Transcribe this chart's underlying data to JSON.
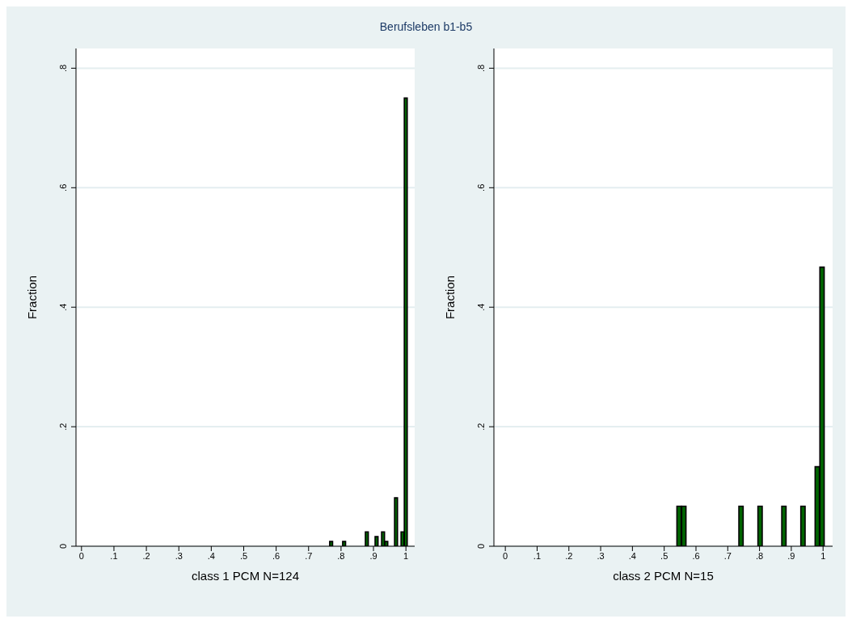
{
  "chart_data": [
    {
      "type": "histogram",
      "title": "Berufsleben b1-b5",
      "xlabel": "class 1 PCM N=124",
      "ylabel": "Fraction",
      "color": "#006400",
      "bins": [
        0.765,
        0.775,
        0.785,
        0.795,
        0.805,
        0.815,
        0.825,
        0.835,
        0.845,
        0.855,
        0.865,
        0.875,
        0.885,
        0.895,
        0.905,
        0.915,
        0.925,
        0.935,
        0.945,
        0.955,
        0.965,
        0.975,
        0.985,
        0.995,
        1.005
      ],
      "values": [
        0.008,
        0,
        0,
        0,
        0.008,
        0,
        0,
        0,
        0,
        0,
        0,
        0.024,
        0,
        0,
        0.016,
        0,
        0.024,
        0.008,
        0,
        0,
        0.081,
        0,
        0.024,
        0.75
      ],
      "xlim": [
        -0.017,
        1.027
      ],
      "xticks": [
        {
          "value": 0,
          "label": "0"
        },
        {
          "value": 0.1,
          "label": ".1"
        },
        {
          "value": 0.2,
          "label": ".2"
        },
        {
          "value": 0.3,
          "label": ".3"
        },
        {
          "value": 0.4,
          "label": ".4"
        },
        {
          "value": 0.5,
          "label": ".5"
        },
        {
          "value": 0.6,
          "label": ".6"
        },
        {
          "value": 0.7,
          "label": ".7"
        },
        {
          "value": 0.8,
          "label": ".8"
        },
        {
          "value": 0.9,
          "label": ".9"
        },
        {
          "value": 1,
          "label": "1"
        }
      ],
      "ylim": [
        0,
        0.833
      ],
      "yticks": [
        {
          "value": 0,
          "label": "0"
        },
        {
          "value": 0.2,
          "label": ".2"
        },
        {
          "value": 0.4,
          "label": ".4"
        },
        {
          "value": 0.6,
          "label": ".6"
        },
        {
          "value": 0.8,
          "label": ".8"
        }
      ],
      "grid": "y"
    },
    {
      "type": "histogram",
      "xlabel": "class 2 PCM N=15",
      "ylabel": "Fraction",
      "color": "#006400",
      "bins": [
        0.54,
        0.555,
        0.57,
        0.585,
        0.6,
        0.615,
        0.63,
        0.645,
        0.66,
        0.675,
        0.69,
        0.705,
        0.72,
        0.735,
        0.75,
        0.765,
        0.78,
        0.795,
        0.81,
        0.825,
        0.84,
        0.855,
        0.87,
        0.885,
        0.9,
        0.915,
        0.93,
        0.945,
        0.96,
        0.975,
        0.99,
        1.005
      ],
      "values": [
        0.067,
        0.067,
        0,
        0,
        0,
        0,
        0,
        0,
        0,
        0,
        0,
        0,
        0,
        0.067,
        0,
        0,
        0,
        0.067,
        0,
        0,
        0,
        0,
        0.067,
        0,
        0,
        0,
        0.067,
        0,
        0,
        0.133,
        0.467
      ],
      "xlim": [
        -0.036,
        1.03
      ],
      "xticks": [
        {
          "value": 0,
          "label": "0"
        },
        {
          "value": 0.1,
          "label": ".1"
        },
        {
          "value": 0.2,
          "label": ".2"
        },
        {
          "value": 0.3,
          "label": ".3"
        },
        {
          "value": 0.4,
          "label": ".4"
        },
        {
          "value": 0.5,
          "label": ".5"
        },
        {
          "value": 0.6,
          "label": ".6"
        },
        {
          "value": 0.7,
          "label": ".7"
        },
        {
          "value": 0.8,
          "label": ".8"
        },
        {
          "value": 0.9,
          "label": ".9"
        },
        {
          "value": 1,
          "label": "1"
        }
      ],
      "ylim": [
        0,
        0.833
      ],
      "yticks": [
        {
          "value": 0,
          "label": "0"
        },
        {
          "value": 0.2,
          "label": ".2"
        },
        {
          "value": 0.4,
          "label": ".4"
        },
        {
          "value": 0.6,
          "label": ".6"
        },
        {
          "value": 0.8,
          "label": ".8"
        }
      ],
      "grid": "y"
    }
  ]
}
